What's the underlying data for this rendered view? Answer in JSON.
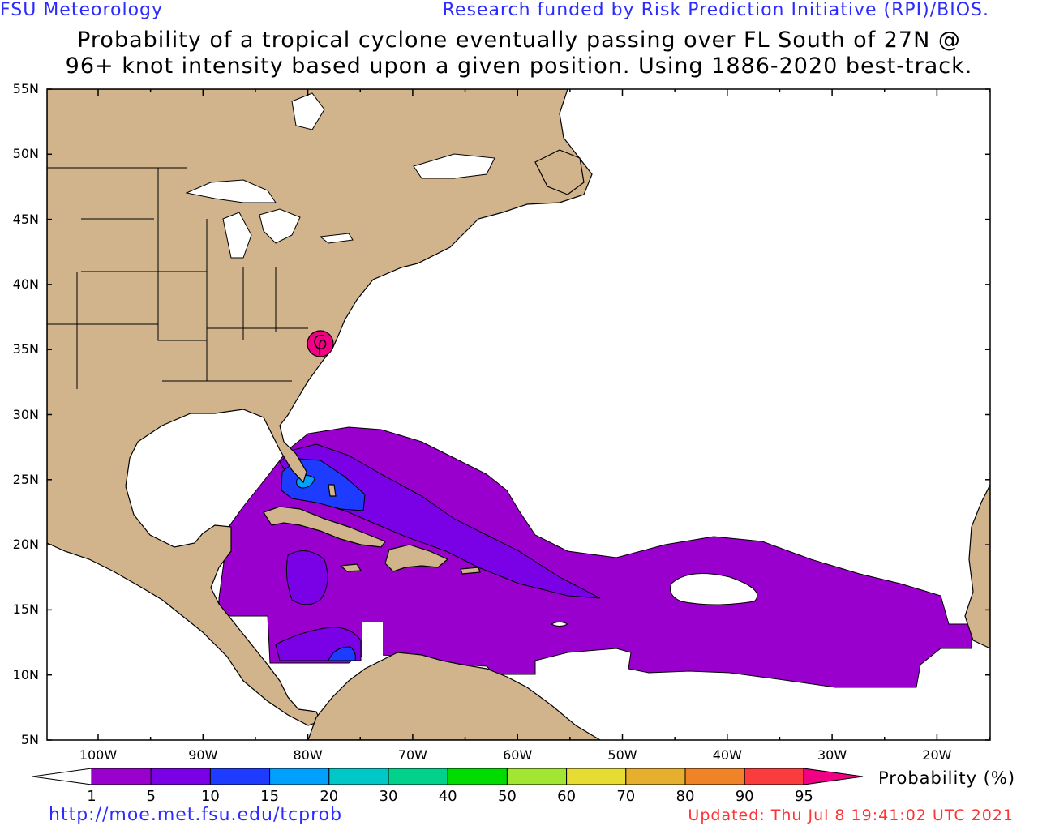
{
  "header": {
    "left": "FSU Meteorology",
    "right": "Research funded by Risk Prediction Initiative (RPI)/BIOS."
  },
  "title": {
    "line1": "Probability of a tropical cyclone eventually passing over FL South of 27N @",
    "line2": "96+ knot intensity based upon a given position.  Using 1886-2020 best-track."
  },
  "axes": {
    "lat_labels": [
      "55N",
      "50N",
      "45N",
      "40N",
      "35N",
      "30N",
      "25N",
      "20N",
      "15N",
      "10N",
      "5N"
    ],
    "lon_labels": [
      "100W",
      "90W",
      "80W",
      "70W",
      "60W",
      "50W",
      "40W",
      "30W",
      "20W"
    ]
  },
  "colorbar": {
    "title": "Probability (%)",
    "labels": [
      "1",
      "5",
      "10",
      "15",
      "20",
      "30",
      "40",
      "50",
      "60",
      "70",
      "80",
      "90",
      "95"
    ],
    "colors": [
      "#9a00cd",
      "#7a00e6",
      "#1e3cff",
      "#00a0ff",
      "#00c8c8",
      "#00d28c",
      "#00dc00",
      "#a0e632",
      "#e6dc32",
      "#e6af2d",
      "#f08228",
      "#fa3c3c",
      "#f00082"
    ]
  },
  "map": {
    "land_color": "#d2b48c",
    "ocean_color": "#ffffff",
    "storm_marker": "hurricane-symbol"
  },
  "footer": {
    "url": "http://moe.met.fsu.edu/tcprob",
    "updated": "Updated: Thu Jul  8 19:41:02 UTC 2021"
  }
}
